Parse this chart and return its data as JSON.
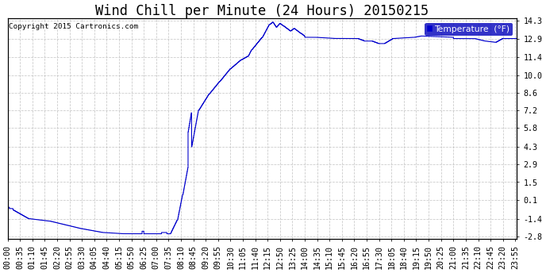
{
  "title": "Wind Chill per Minute (24 Hours) 20150215",
  "copyright": "Copyright 2015 Cartronics.com",
  "legend_label": "Temperature  (°F)",
  "line_color": "#0000cc",
  "background_color": "#ffffff",
  "grid_color": "#bbbbbb",
  "ylim_min": -2.8,
  "ylim_max": 14.3,
  "yticks": [
    -2.8,
    -1.4,
    0.1,
    1.5,
    2.9,
    4.3,
    5.8,
    7.2,
    8.6,
    10.0,
    11.4,
    12.9,
    14.3
  ],
  "title_fontsize": 11,
  "tick_fontsize": 6.5,
  "copyright_fontsize": 6,
  "num_points": 1440,
  "tick_step_minutes": 35
}
